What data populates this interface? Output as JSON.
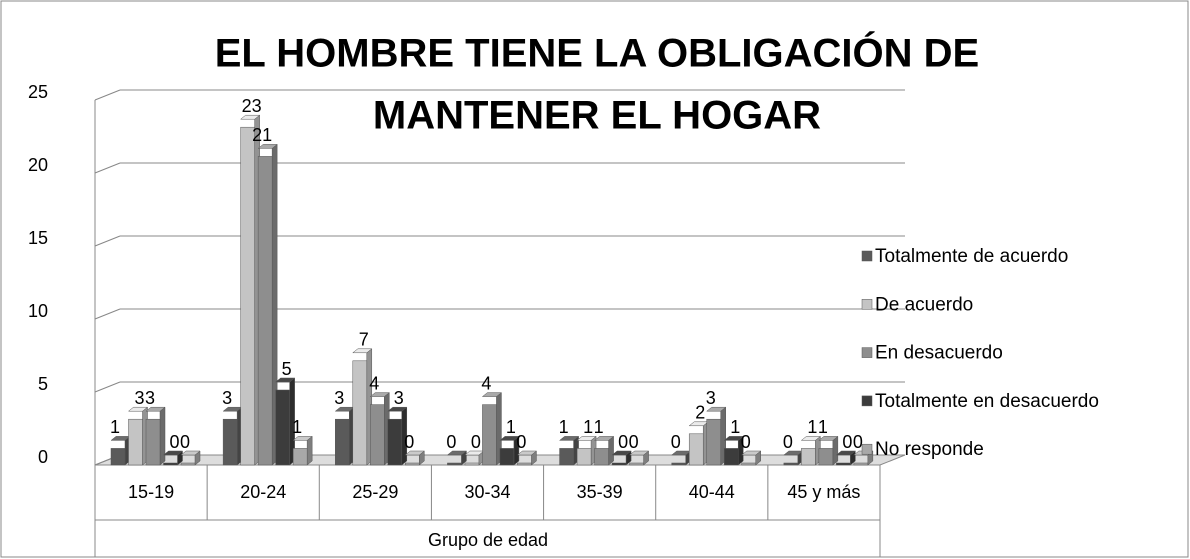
{
  "chart_data": {
    "type": "bar",
    "title": [
      "EL HOMBRE TIENE LA OBLIGACIÓN DE",
      "MANTENER EL HOGAR"
    ],
    "x_label": "Grupo de edad",
    "categories": [
      "15-19",
      "20-24",
      "25-29",
      "30-34",
      "35-39",
      "40-44",
      "45 y más"
    ],
    "series": [
      {
        "name": "Totalmente de acuerdo",
        "color": "#5a5a5a",
        "values": [
          1,
          3,
          3,
          0,
          1,
          0,
          0
        ]
      },
      {
        "name": "De acuerdo",
        "color": "#c4c4c4",
        "values": [
          3,
          23,
          7,
          0,
          1,
          2,
          1
        ]
      },
      {
        "name": "En desacuerdo",
        "color": "#8e8e8e",
        "values": [
          3,
          21,
          4,
          4,
          1,
          3,
          1
        ]
      },
      {
        "name": "Totalmente en desacuerdo",
        "color": "#3c3c3c",
        "values": [
          0,
          5,
          3,
          1,
          0,
          1,
          0
        ]
      },
      {
        "name": "No responde",
        "color": "#a8a8a8",
        "values": [
          0,
          1,
          0,
          0,
          0,
          0,
          0
        ]
      }
    ],
    "ylim": [
      0,
      25
    ],
    "yticks": [
      0,
      5,
      10,
      15,
      20,
      25
    ],
    "grid": true,
    "legend": "right"
  }
}
